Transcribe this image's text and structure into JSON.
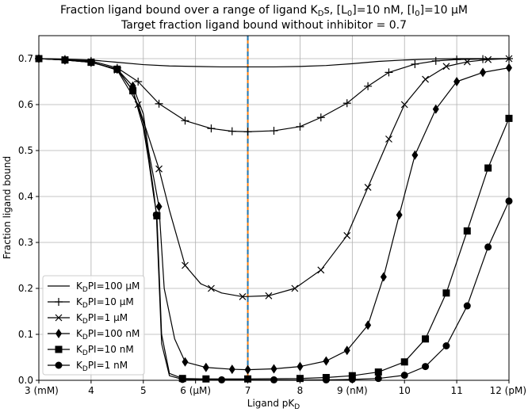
{
  "chart_data": {
    "type": "line",
    "title_line1": "Fraction ligand bound over a range of ligand K₂s, [L₀]=10 nM, [I₀]=10 µM",
    "title_line1_pre": "Fraction ligand bound over a range of ligand K",
    "title_line1_sub": "D",
    "title_line1_mid1": "s, [L",
    "title_line1_sub2": "0",
    "title_line1_mid2": "]=10 nM, [I",
    "title_line1_sub3": "0",
    "title_line1_post": "]=10 µM",
    "title_line2": "Target fraction ligand bound without inhibitor = 0.7",
    "xlabel_pre": "Ligand pK",
    "xlabel_sub": "D",
    "ylabel": "Fraction ligand bound",
    "xlim": [
      3,
      12
    ],
    "ylim": [
      0,
      0.75
    ],
    "grid": true,
    "legend_position": "lower-left",
    "x_ticks": [
      {
        "value": 3,
        "label": "3 (mM)"
      },
      {
        "value": 4,
        "label": "4"
      },
      {
        "value": 5,
        "label": "5"
      },
      {
        "value": 6,
        "label": "6 (µM)"
      },
      {
        "value": 7,
        "label": "7"
      },
      {
        "value": 8,
        "label": "8"
      },
      {
        "value": 9,
        "label": "9 (nM)"
      },
      {
        "value": 10,
        "label": "10"
      },
      {
        "value": 11,
        "label": "11"
      },
      {
        "value": 12,
        "label": "12 (pM)"
      }
    ],
    "y_ticks": [
      {
        "value": 0.0,
        "label": "0.0"
      },
      {
        "value": 0.1,
        "label": "0.1"
      },
      {
        "value": 0.2,
        "label": "0.2"
      },
      {
        "value": 0.3,
        "label": "0.3"
      },
      {
        "value": 0.4,
        "label": "0.4"
      },
      {
        "value": 0.5,
        "label": "0.5"
      },
      {
        "value": 0.6,
        "label": "0.6"
      },
      {
        "value": 0.7,
        "label": "0.7"
      }
    ],
    "vertical_line": {
      "x": 7,
      "colors": [
        "#1f77b4",
        "#ff7f0e"
      ]
    },
    "series": [
      {
        "name_pre": "K",
        "name_sub": "D",
        "name_post": "PI=100 µM",
        "marker": "none",
        "x": [
          3.0,
          3.5,
          4.0,
          4.5,
          5.0,
          5.5,
          6.0,
          6.5,
          7.0,
          7.5,
          8.0,
          8.5,
          9.0,
          9.5,
          10.0,
          10.5,
          11.0,
          11.5,
          12.0
        ],
        "y": [
          0.7,
          0.699,
          0.697,
          0.692,
          0.687,
          0.684,
          0.683,
          0.682,
          0.682,
          0.682,
          0.683,
          0.685,
          0.689,
          0.694,
          0.697,
          0.699,
          0.7,
          0.7,
          0.7
        ]
      },
      {
        "name_pre": "K",
        "name_sub": "D",
        "name_post": "PI=10 µM",
        "marker": "plus",
        "x": [
          3.0,
          3.5,
          4.0,
          4.5,
          4.9,
          5.3,
          5.8,
          6.3,
          6.7,
          7.0,
          7.5,
          8.0,
          8.4,
          8.9,
          9.3,
          9.7,
          10.2,
          10.6,
          11.0,
          11.5,
          12.0
        ],
        "y": [
          0.7,
          0.699,
          0.695,
          0.68,
          0.65,
          0.602,
          0.565,
          0.548,
          0.542,
          0.541,
          0.543,
          0.552,
          0.572,
          0.603,
          0.64,
          0.67,
          0.688,
          0.695,
          0.698,
          0.699,
          0.7
        ]
      },
      {
        "name_pre": "K",
        "name_sub": "D",
        "name_post": "PI=1 µM",
        "marker": "x",
        "x": [
          3.0,
          3.5,
          4.0,
          4.5,
          4.9,
          5.1,
          5.3,
          5.5,
          5.8,
          6.1,
          6.5,
          6.9,
          7.4,
          7.9,
          8.4,
          8.9,
          9.3,
          9.7,
          10.0,
          10.4,
          10.8,
          11.2,
          11.6,
          12.0
        ],
        "y": [
          0.7,
          0.698,
          0.693,
          0.675,
          0.6,
          0.53,
          0.46,
          0.37,
          0.25,
          0.21,
          0.19,
          0.182,
          0.184,
          0.2,
          0.24,
          0.315,
          0.42,
          0.525,
          0.6,
          0.655,
          0.683,
          0.693,
          0.698,
          0.7
        ]
      },
      {
        "name_pre": "K",
        "name_sub": "D",
        "name_post": "PI=100 nM",
        "marker": "diamond",
        "x": [
          3.0,
          3.5,
          4.0,
          4.5,
          4.8,
          5.0,
          5.1,
          5.2,
          5.3,
          5.4,
          5.6,
          5.8,
          6.2,
          6.7,
          7.0,
          7.5,
          8.0,
          8.5,
          8.9,
          9.3,
          9.6,
          9.9,
          10.2,
          10.6,
          11.0,
          11.5,
          12.0
        ],
        "y": [
          0.7,
          0.697,
          0.692,
          0.677,
          0.64,
          0.58,
          0.5,
          0.44,
          0.378,
          0.2,
          0.09,
          0.04,
          0.028,
          0.024,
          0.023,
          0.025,
          0.03,
          0.042,
          0.065,
          0.12,
          0.225,
          0.36,
          0.49,
          0.59,
          0.65,
          0.67,
          0.68
        ]
      },
      {
        "name_pre": "K",
        "name_sub": "D",
        "name_post": "PI=10 nM",
        "marker": "square",
        "x": [
          3.0,
          3.5,
          4.0,
          4.5,
          4.8,
          5.0,
          5.1,
          5.2,
          5.26,
          5.35,
          5.5,
          5.75,
          6.2,
          7.0,
          8.0,
          8.5,
          9.0,
          9.5,
          10.0,
          10.4,
          10.8,
          11.2,
          11.6,
          12.0
        ],
        "y": [
          0.7,
          0.697,
          0.692,
          0.677,
          0.63,
          0.55,
          0.48,
          0.4,
          0.358,
          0.1,
          0.015,
          0.004,
          0.003,
          0.003,
          0.004,
          0.006,
          0.01,
          0.018,
          0.04,
          0.09,
          0.19,
          0.325,
          0.462,
          0.57
        ]
      },
      {
        "name_pre": "K",
        "name_sub": "D",
        "name_post": "PI=1 nM",
        "marker": "circle",
        "x": [
          3.0,
          3.5,
          4.0,
          4.5,
          4.8,
          5.0,
          5.1,
          5.2,
          5.25,
          5.35,
          5.5,
          5.75,
          6.5,
          7.5,
          8.5,
          9.0,
          9.5,
          10.0,
          10.4,
          10.8,
          11.2,
          11.6,
          12.0
        ],
        "y": [
          0.7,
          0.697,
          0.692,
          0.677,
          0.63,
          0.56,
          0.49,
          0.41,
          0.36,
          0.08,
          0.01,
          0.002,
          0.001,
          0.001,
          0.001,
          0.002,
          0.004,
          0.011,
          0.03,
          0.075,
          0.162,
          0.29,
          0.39
        ]
      }
    ],
    "marker_positions": {
      "none": [],
      "plus": [
        3.0,
        3.5,
        4.0,
        4.5,
        4.9,
        5.3,
        5.8,
        6.3,
        6.7,
        7.0,
        7.5,
        8.0,
        8.4,
        8.9,
        9.3,
        9.7,
        10.2,
        10.6,
        11.0,
        11.5,
        12.0
      ],
      "x": [
        3.0,
        3.5,
        4.0,
        4.5,
        4.9,
        5.3,
        5.8,
        6.3,
        6.9,
        7.4,
        7.9,
        8.4,
        8.9,
        9.3,
        9.7,
        10.0,
        10.4,
        10.8,
        11.2,
        11.6,
        12.0
      ],
      "diamond": [
        3.0,
        3.5,
        4.0,
        4.5,
        4.8,
        5.3,
        5.8,
        6.2,
        6.7,
        7.0,
        7.5,
        8.0,
        8.5,
        8.9,
        9.3,
        9.6,
        9.9,
        10.2,
        10.6,
        11.0,
        11.5,
        12.0
      ],
      "square": [
        3.0,
        3.5,
        4.0,
        4.5,
        4.8,
        5.26,
        5.75,
        6.2,
        7.0,
        8.0,
        8.5,
        9.0,
        9.5,
        10.0,
        10.4,
        10.8,
        11.2,
        11.6,
        12.0
      ],
      "circle": [
        3.0,
        3.5,
        4.0,
        4.5,
        4.8,
        5.25,
        5.75,
        6.5,
        7.5,
        8.5,
        9.0,
        9.5,
        10.0,
        10.4,
        10.8,
        11.2,
        11.6,
        12.0
      ]
    }
  }
}
